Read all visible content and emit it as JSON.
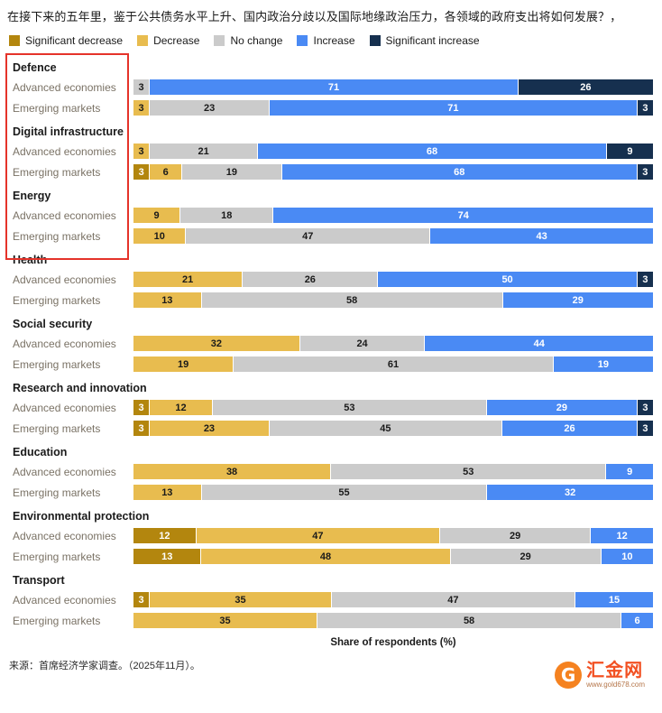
{
  "title": "在接下来的五年里，鉴于公共债务水平上升、国内政治分歧以及国际地缘政治压力，各领域的政府支出将如何发展？，",
  "legend": [
    {
      "key": "sig_dec",
      "label": "Significant decrease"
    },
    {
      "key": "dec",
      "label": "Decrease"
    },
    {
      "key": "none",
      "label": "No change"
    },
    {
      "key": "inc",
      "label": "Increase"
    },
    {
      "key": "sig_inc",
      "label": "Significant increase"
    }
  ],
  "colors": {
    "sig_dec": {
      "bg": "#b3860e",
      "text": "#ffffff"
    },
    "dec": {
      "bg": "#e8bc4f",
      "text": "#1a1a1a"
    },
    "none": {
      "bg": "#cbcbcb",
      "text": "#1a1a1a"
    },
    "inc": {
      "bg": "#4a8af4",
      "text": "#ffffff"
    },
    "sig_inc": {
      "bg": "#16304f",
      "text": "#ffffff"
    }
  },
  "chart_data": {
    "type": "bar",
    "orientation": "horizontal",
    "stacked": true,
    "xlabel": "Share of respondents (%)",
    "legend_position": "top",
    "categories_legend": [
      "Significant decrease",
      "Decrease",
      "No change",
      "Increase",
      "Significant increase"
    ],
    "groups": [
      {
        "name": "Defence",
        "rows": [
          {
            "label": "Advanced economies",
            "segments": [
              {
                "key": "none",
                "value": 3
              },
              {
                "key": "inc",
                "value": 71
              },
              {
                "key": "sig_inc",
                "value": 26
              }
            ]
          },
          {
            "label": "Emerging markets",
            "segments": [
              {
                "key": "dec",
                "value": 3
              },
              {
                "key": "none",
                "value": 23
              },
              {
                "key": "inc",
                "value": 71
              },
              {
                "key": "sig_inc",
                "value": 3
              }
            ]
          }
        ]
      },
      {
        "name": "Digital infrastructure",
        "rows": [
          {
            "label": "Advanced economies",
            "segments": [
              {
                "key": "dec",
                "value": 3
              },
              {
                "key": "none",
                "value": 21
              },
              {
                "key": "inc",
                "value": 68
              },
              {
                "key": "sig_inc",
                "value": 9
              }
            ]
          },
          {
            "label": "Emerging markets",
            "segments": [
              {
                "key": "sig_dec",
                "value": 3
              },
              {
                "key": "dec",
                "value": 6
              },
              {
                "key": "none",
                "value": 19
              },
              {
                "key": "inc",
                "value": 68
              },
              {
                "key": "sig_inc",
                "value": 3
              }
            ]
          }
        ]
      },
      {
        "name": "Energy",
        "rows": [
          {
            "label": "Advanced economies",
            "segments": [
              {
                "key": "dec",
                "value": 9
              },
              {
                "key": "none",
                "value": 18
              },
              {
                "key": "inc",
                "value": 74
              }
            ]
          },
          {
            "label": "Emerging markets",
            "segments": [
              {
                "key": "dec",
                "value": 10
              },
              {
                "key": "none",
                "value": 47
              },
              {
                "key": "inc",
                "value": 43
              }
            ]
          }
        ]
      },
      {
        "name": "Health",
        "rows": [
          {
            "label": "Advanced economies",
            "segments": [
              {
                "key": "dec",
                "value": 21
              },
              {
                "key": "none",
                "value": 26
              },
              {
                "key": "inc",
                "value": 50
              },
              {
                "key": "sig_inc",
                "value": 3
              }
            ]
          },
          {
            "label": "Emerging markets",
            "segments": [
              {
                "key": "dec",
                "value": 13
              },
              {
                "key": "none",
                "value": 58
              },
              {
                "key": "inc",
                "value": 29
              }
            ]
          }
        ]
      },
      {
        "name": "Social security",
        "rows": [
          {
            "label": "Advanced economies",
            "segments": [
              {
                "key": "dec",
                "value": 32
              },
              {
                "key": "none",
                "value": 24
              },
              {
                "key": "inc",
                "value": 44
              }
            ]
          },
          {
            "label": "Emerging markets",
            "segments": [
              {
                "key": "dec",
                "value": 19
              },
              {
                "key": "none",
                "value": 61
              },
              {
                "key": "inc",
                "value": 19
              }
            ]
          }
        ]
      },
      {
        "name": "Research and innovation",
        "rows": [
          {
            "label": "Advanced economies",
            "segments": [
              {
                "key": "sig_dec",
                "value": 3
              },
              {
                "key": "dec",
                "value": 12
              },
              {
                "key": "none",
                "value": 53
              },
              {
                "key": "inc",
                "value": 29
              },
              {
                "key": "sig_inc",
                "value": 3
              }
            ]
          },
          {
            "label": "Emerging markets",
            "segments": [
              {
                "key": "sig_dec",
                "value": 3
              },
              {
                "key": "dec",
                "value": 23
              },
              {
                "key": "none",
                "value": 45
              },
              {
                "key": "inc",
                "value": 26
              },
              {
                "key": "sig_inc",
                "value": 3
              }
            ]
          }
        ]
      },
      {
        "name": "Education",
        "rows": [
          {
            "label": "Advanced economies",
            "segments": [
              {
                "key": "dec",
                "value": 38
              },
              {
                "key": "none",
                "value": 53
              },
              {
                "key": "inc",
                "value": 9
              }
            ]
          },
          {
            "label": "Emerging markets",
            "segments": [
              {
                "key": "dec",
                "value": 13
              },
              {
                "key": "none",
                "value": 55
              },
              {
                "key": "inc",
                "value": 32
              }
            ]
          }
        ]
      },
      {
        "name": "Environmental protection",
        "rows": [
          {
            "label": "Advanced economies",
            "segments": [
              {
                "key": "sig_dec",
                "value": 12
              },
              {
                "key": "dec",
                "value": 47
              },
              {
                "key": "none",
                "value": 29
              },
              {
                "key": "inc",
                "value": 12
              }
            ]
          },
          {
            "label": "Emerging markets",
            "segments": [
              {
                "key": "sig_dec",
                "value": 13
              },
              {
                "key": "dec",
                "value": 48
              },
              {
                "key": "none",
                "value": 29
              },
              {
                "key": "inc",
                "value": 10
              }
            ]
          }
        ]
      },
      {
        "name": "Transport",
        "rows": [
          {
            "label": "Advanced economies",
            "segments": [
              {
                "key": "sig_dec",
                "value": 3
              },
              {
                "key": "dec",
                "value": 35
              },
              {
                "key": "none",
                "value": 47
              },
              {
                "key": "inc",
                "value": 15
              }
            ]
          },
          {
            "label": "Emerging markets",
            "segments": [
              {
                "key": "dec",
                "value": 35
              },
              {
                "key": "none",
                "value": 58
              },
              {
                "key": "inc",
                "value": 6
              }
            ]
          }
        ]
      }
    ]
  },
  "xlabel": "Share of respondents (%)",
  "source": "来源：首席经济学家调查。（2025年11月）。",
  "watermark": {
    "initial": "G",
    "name": "汇金网",
    "url": "www.gold678.com"
  },
  "highlight_color": "#e5332a"
}
